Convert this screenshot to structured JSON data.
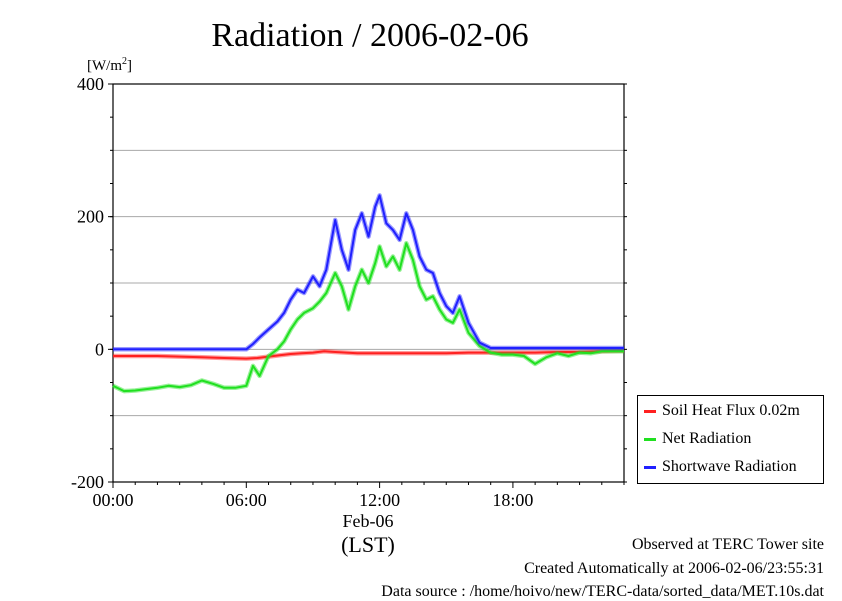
{
  "chart_data": {
    "type": "line",
    "title": "Radiation / 2006-02-06",
    "ylabel": "[W/m²]",
    "ylabel_base": "[W/m",
    "ylabel_sup": "2",
    "ylabel_end": "]",
    "xlabel": "(LST)",
    "date_label": "Feb-06",
    "xlim": [
      0,
      23
    ],
    "ylim": [
      -200,
      400
    ],
    "grid": true,
    "legend_position": "outside-right",
    "x_ticks": [
      {
        "value": 0,
        "label": "00:00"
      },
      {
        "value": 6,
        "label": "06:00"
      },
      {
        "value": 12,
        "label": "12:00"
      },
      {
        "value": 18,
        "label": "18:00"
      }
    ],
    "y_ticks": [
      {
        "value": -200,
        "label": "-200"
      },
      {
        "value": 0,
        "label": "0"
      },
      {
        "value": 200,
        "label": "200"
      },
      {
        "value": 400,
        "label": "400"
      }
    ],
    "y_grid": [
      -100,
      0,
      100,
      200,
      300
    ],
    "series": [
      {
        "name": "Soil Heat Flux 0.02m",
        "color": "#ff2020",
        "x": [
          0,
          1,
          2,
          3,
          4,
          5,
          6,
          6.5,
          7,
          7.5,
          8,
          8.5,
          9,
          9.5,
          10,
          11,
          12,
          13,
          14,
          15,
          16,
          17,
          18,
          19,
          20,
          21,
          22,
          23
        ],
        "y": [
          -10,
          -10,
          -10,
          -11,
          -12,
          -13,
          -14,
          -13,
          -11,
          -9,
          -7,
          -6,
          -5,
          -3,
          -4,
          -6,
          -6,
          -6,
          -6,
          -6,
          -5,
          -5,
          -5,
          -5,
          -4,
          -4,
          -3,
          -2
        ]
      },
      {
        "name": "Net Radiation",
        "color": "#20e020",
        "x": [
          0,
          0.5,
          1,
          1.5,
          2,
          2.5,
          3,
          3.5,
          4,
          4.5,
          5,
          5.5,
          6,
          6.3,
          6.6,
          7,
          7.4,
          7.7,
          8,
          8.3,
          8.6,
          9,
          9.3,
          9.6,
          10,
          10.3,
          10.6,
          10.9,
          11.2,
          11.5,
          11.8,
          12,
          12.3,
          12.6,
          12.9,
          13.2,
          13.5,
          13.8,
          14.1,
          14.4,
          14.7,
          15,
          15.3,
          15.6,
          16,
          16.5,
          17,
          17.5,
          18,
          18.5,
          19,
          19.5,
          20,
          20.5,
          21,
          21.5,
          22,
          22.5,
          23
        ],
        "y": [
          -55,
          -63,
          -62,
          -60,
          -58,
          -55,
          -57,
          -54,
          -47,
          -52,
          -58,
          -58,
          -55,
          -25,
          -40,
          -10,
          0,
          12,
          30,
          45,
          55,
          62,
          72,
          85,
          115,
          95,
          60,
          95,
          120,
          100,
          130,
          155,
          125,
          140,
          120,
          160,
          135,
          95,
          75,
          80,
          60,
          45,
          40,
          60,
          25,
          5,
          -5,
          -8,
          -8,
          -10,
          -22,
          -12,
          -6,
          -10,
          -5,
          -6,
          -3,
          -3,
          -3
        ]
      },
      {
        "name": "Shortwave Radiation",
        "color": "#2020ff",
        "x": [
          0,
          1,
          2,
          3,
          4,
          5,
          6,
          6.3,
          6.6,
          7,
          7.4,
          7.7,
          8,
          8.3,
          8.6,
          9,
          9.3,
          9.6,
          10,
          10.3,
          10.6,
          10.9,
          11.2,
          11.5,
          11.8,
          12,
          12.3,
          12.6,
          12.9,
          13.2,
          13.5,
          13.8,
          14.1,
          14.4,
          14.7,
          15,
          15.3,
          15.6,
          16,
          16.5,
          17,
          18,
          19,
          20,
          21,
          22,
          23
        ],
        "y": [
          0,
          0,
          0,
          0,
          0,
          0,
          0,
          8,
          18,
          30,
          42,
          55,
          75,
          90,
          85,
          110,
          95,
          120,
          195,
          150,
          120,
          180,
          205,
          170,
          215,
          232,
          190,
          180,
          165,
          205,
          180,
          140,
          120,
          115,
          85,
          65,
          55,
          80,
          40,
          10,
          2,
          2,
          2,
          2,
          2,
          2,
          2
        ]
      }
    ]
  },
  "footer": {
    "observed": "Observed at TERC Tower site",
    "created": "Created Automatically at 2006-02-06/23:55:31",
    "source": "Data source : /home/hoivo/new/TERC-data/sorted_data/MET.10s.dat"
  }
}
